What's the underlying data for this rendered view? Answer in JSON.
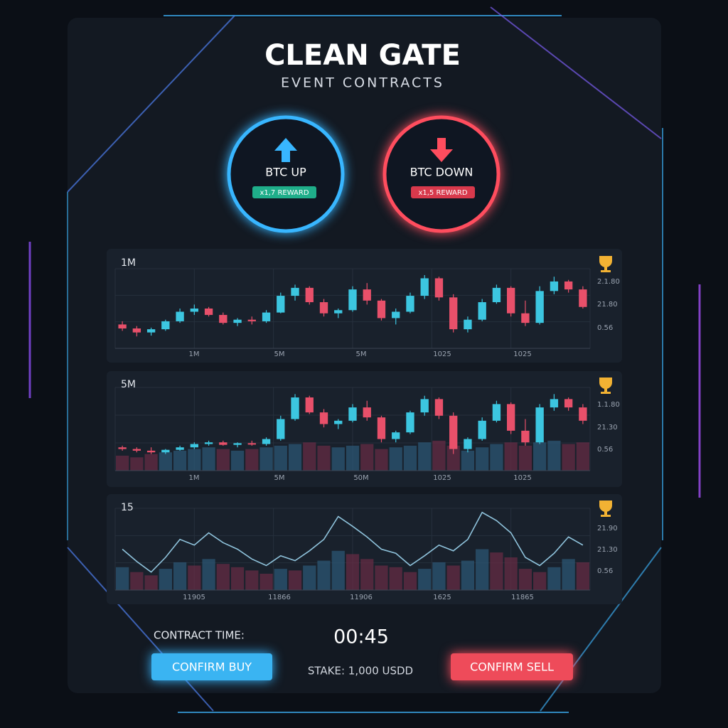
{
  "header": {
    "title": "CLEAN GATE",
    "subtitle": "EVENT CONTRACTS"
  },
  "colors": {
    "up": "#3cc6e0",
    "down": "#e8506a"
  },
  "options": [
    {
      "label": "BTC UP",
      "reward": "x1,7 REWARD"
    },
    {
      "label": "BTC DOWN",
      "reward": "x1,5 REWARD"
    }
  ],
  "charts": [
    {
      "type": "candlestick",
      "label": "1M",
      "ylim": [
        0,
        100
      ],
      "y_labels": [
        "2.1.80",
        "21.80",
        "0.56"
      ],
      "x_labels": [
        "1M",
        "5M",
        "5M",
        "1025",
        "1025"
      ],
      "candles": [
        [
          30,
          34,
          22,
          25
        ],
        [
          25,
          28,
          15,
          20
        ],
        [
          20,
          26,
          16,
          24
        ],
        [
          24,
          36,
          22,
          34
        ],
        [
          34,
          50,
          32,
          46
        ],
        [
          46,
          55,
          42,
          50
        ],
        [
          50,
          52,
          40,
          42
        ],
        [
          42,
          45,
          30,
          32
        ],
        [
          32,
          38,
          28,
          36
        ],
        [
          36,
          40,
          30,
          34
        ],
        [
          34,
          48,
          32,
          45
        ],
        [
          45,
          70,
          44,
          66
        ],
        [
          66,
          80,
          60,
          76
        ],
        [
          76,
          78,
          55,
          58
        ],
        [
          58,
          62,
          40,
          44
        ],
        [
          44,
          50,
          38,
          48
        ],
        [
          48,
          78,
          46,
          74
        ],
        [
          74,
          82,
          55,
          60
        ],
        [
          60,
          62,
          35,
          38
        ],
        [
          38,
          50,
          30,
          46
        ],
        [
          46,
          70,
          44,
          66
        ],
        [
          66,
          92,
          62,
          88
        ],
        [
          88,
          90,
          60,
          64
        ],
        [
          64,
          68,
          20,
          24
        ],
        [
          24,
          40,
          20,
          36
        ],
        [
          36,
          62,
          34,
          58
        ],
        [
          58,
          80,
          56,
          76
        ],
        [
          76,
          78,
          40,
          44
        ],
        [
          44,
          60,
          28,
          32
        ],
        [
          32,
          78,
          30,
          72
        ],
        [
          72,
          90,
          68,
          84
        ],
        [
          84,
          86,
          70,
          74
        ],
        [
          74,
          78,
          50,
          52
        ]
      ]
    },
    {
      "type": "candlestick",
      "label": "5M",
      "ylim": [
        0,
        100
      ],
      "y_labels": [
        "1.1.80",
        "21.30",
        "0.56"
      ],
      "x_labels": [
        "1M",
        "5M",
        "50M",
        "1025",
        "1025"
      ],
      "candles": [
        [
          28,
          30,
          24,
          26
        ],
        [
          26,
          28,
          22,
          24
        ],
        [
          24,
          28,
          20,
          22
        ],
        [
          22,
          26,
          20,
          25
        ],
        [
          25,
          30,
          24,
          28
        ],
        [
          28,
          34,
          26,
          32
        ],
        [
          32,
          36,
          30,
          34
        ],
        [
          34,
          36,
          30,
          31
        ],
        [
          31,
          34,
          28,
          33
        ],
        [
          33,
          36,
          30,
          32
        ],
        [
          32,
          40,
          30,
          38
        ],
        [
          38,
          66,
          36,
          62
        ],
        [
          62,
          92,
          60,
          88
        ],
        [
          88,
          90,
          68,
          70
        ],
        [
          70,
          74,
          52,
          56
        ],
        [
          56,
          62,
          50,
          60
        ],
        [
          60,
          80,
          58,
          76
        ],
        [
          76,
          84,
          60,
          64
        ],
        [
          64,
          66,
          34,
          38
        ],
        [
          38,
          48,
          34,
          46
        ],
        [
          46,
          72,
          44,
          70
        ],
        [
          70,
          90,
          66,
          86
        ],
        [
          86,
          88,
          62,
          66
        ],
        [
          66,
          70,
          20,
          26
        ],
        [
          26,
          40,
          22,
          38
        ],
        [
          38,
          64,
          36,
          60
        ],
        [
          60,
          84,
          58,
          80
        ],
        [
          80,
          82,
          44,
          48
        ],
        [
          48,
          62,
          30,
          34
        ],
        [
          34,
          80,
          32,
          76
        ],
        [
          76,
          92,
          72,
          86
        ],
        [
          86,
          88,
          72,
          76
        ],
        [
          76,
          80,
          56,
          60
        ]
      ],
      "volumes": [
        18,
        16,
        20,
        22,
        24,
        26,
        28,
        26,
        24,
        26,
        28,
        30,
        32,
        34,
        30,
        28,
        30,
        32,
        26,
        28,
        30,
        34,
        36,
        30,
        24,
        28,
        32,
        34,
        30,
        34,
        36,
        32,
        34
      ]
    },
    {
      "type": "line",
      "label": "15",
      "ylim": [
        0,
        100
      ],
      "y_labels": [
        "21.90",
        "21.30",
        "0.56"
      ],
      "x_labels": [
        "11905",
        "11866",
        "11906",
        "1625",
        "11865"
      ],
      "values": [
        50,
        35,
        22,
        40,
        62,
        55,
        70,
        58,
        50,
        38,
        30,
        42,
        36,
        48,
        62,
        90,
        78,
        65,
        50,
        45,
        30,
        42,
        55,
        48,
        62,
        95,
        85,
        70,
        40,
        30,
        45,
        65,
        55
      ],
      "volumes": [
        28,
        22,
        18,
        26,
        34,
        30,
        38,
        32,
        28,
        24,
        20,
        26,
        24,
        30,
        36,
        48,
        44,
        38,
        30,
        28,
        22,
        26,
        34,
        30,
        36,
        50,
        46,
        40,
        26,
        22,
        28,
        38,
        34
      ]
    }
  ],
  "footer": {
    "contract_time_label": "CONTRACT TIME:",
    "timer": "00:45",
    "buy": "CONFIRM BUY",
    "stake": "STAKE: 1,000 USDD",
    "sell": "CONFIRM SELL"
  }
}
